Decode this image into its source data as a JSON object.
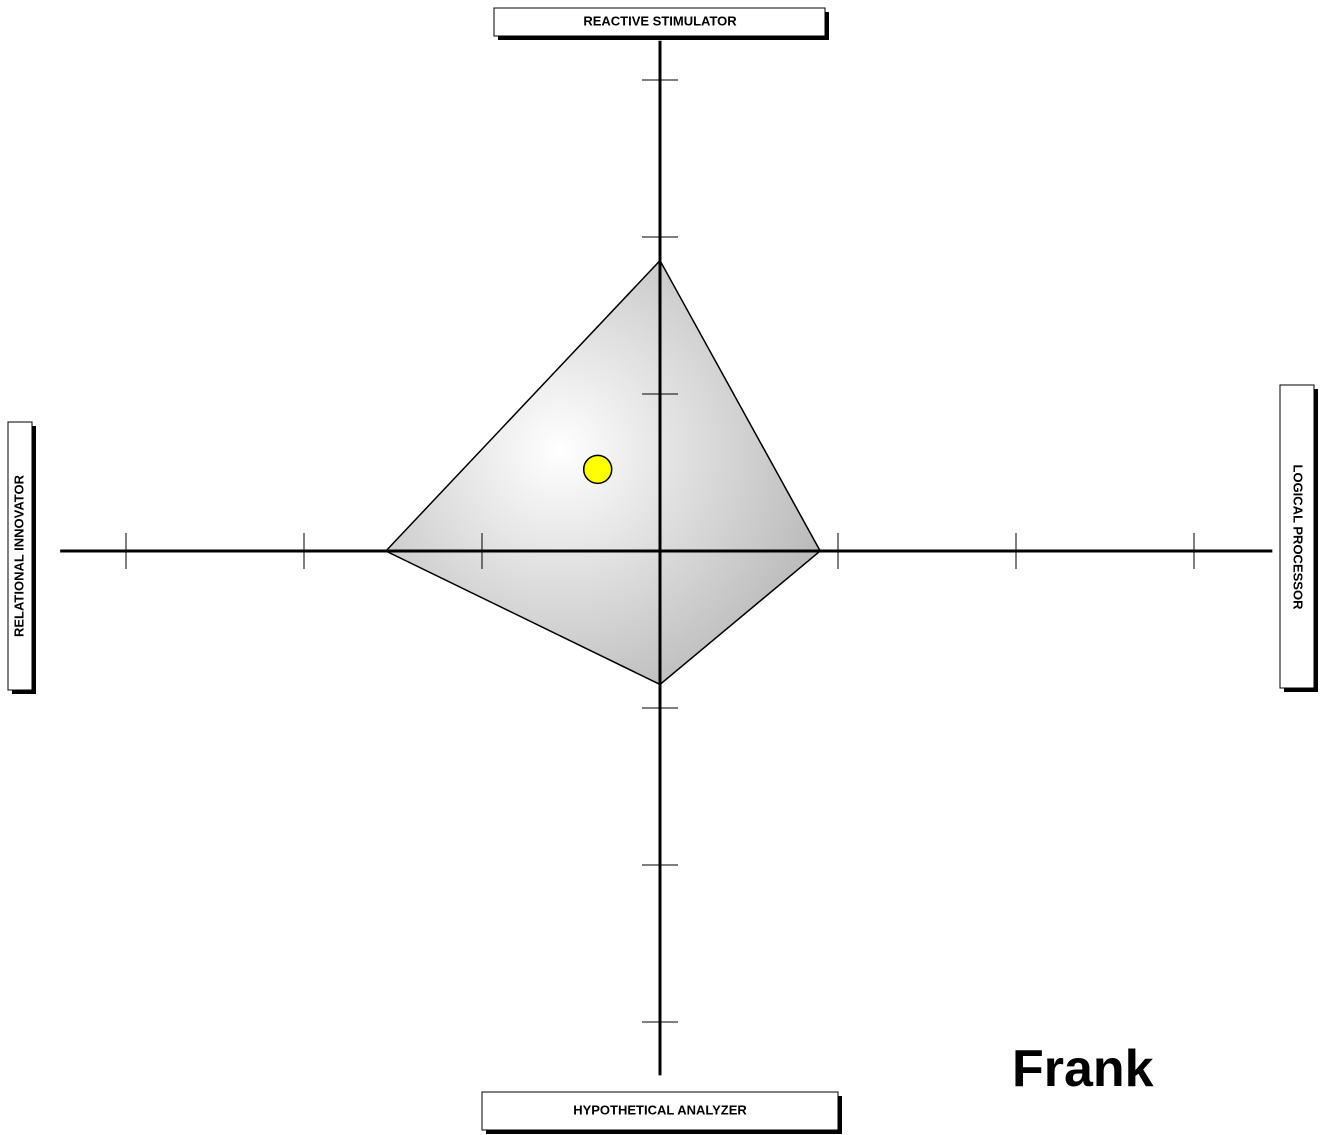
{
  "chart_data": {
    "type": "quadrant-profile",
    "name": "Frank",
    "ticks": [
      1,
      2,
      3
    ],
    "axes": [
      {
        "label": "REACTIVE STIMULATOR",
        "value": 1.85,
        "lim": 3.25
      },
      {
        "label": "LOGICAL PROCESSOR",
        "value": 0.9,
        "lim": 3.44
      },
      {
        "label": "HYPOTHETICAL ANALYZER",
        "value": 0.85,
        "lim": 3.34
      },
      {
        "label": "RELATIONAL INNOVATOR",
        "value": 1.54,
        "lim": 3.37
      }
    ],
    "point": {
      "x": -0.35,
      "y": 0.52,
      "color": "#ffff00"
    },
    "fill": "#b4b4b4"
  }
}
